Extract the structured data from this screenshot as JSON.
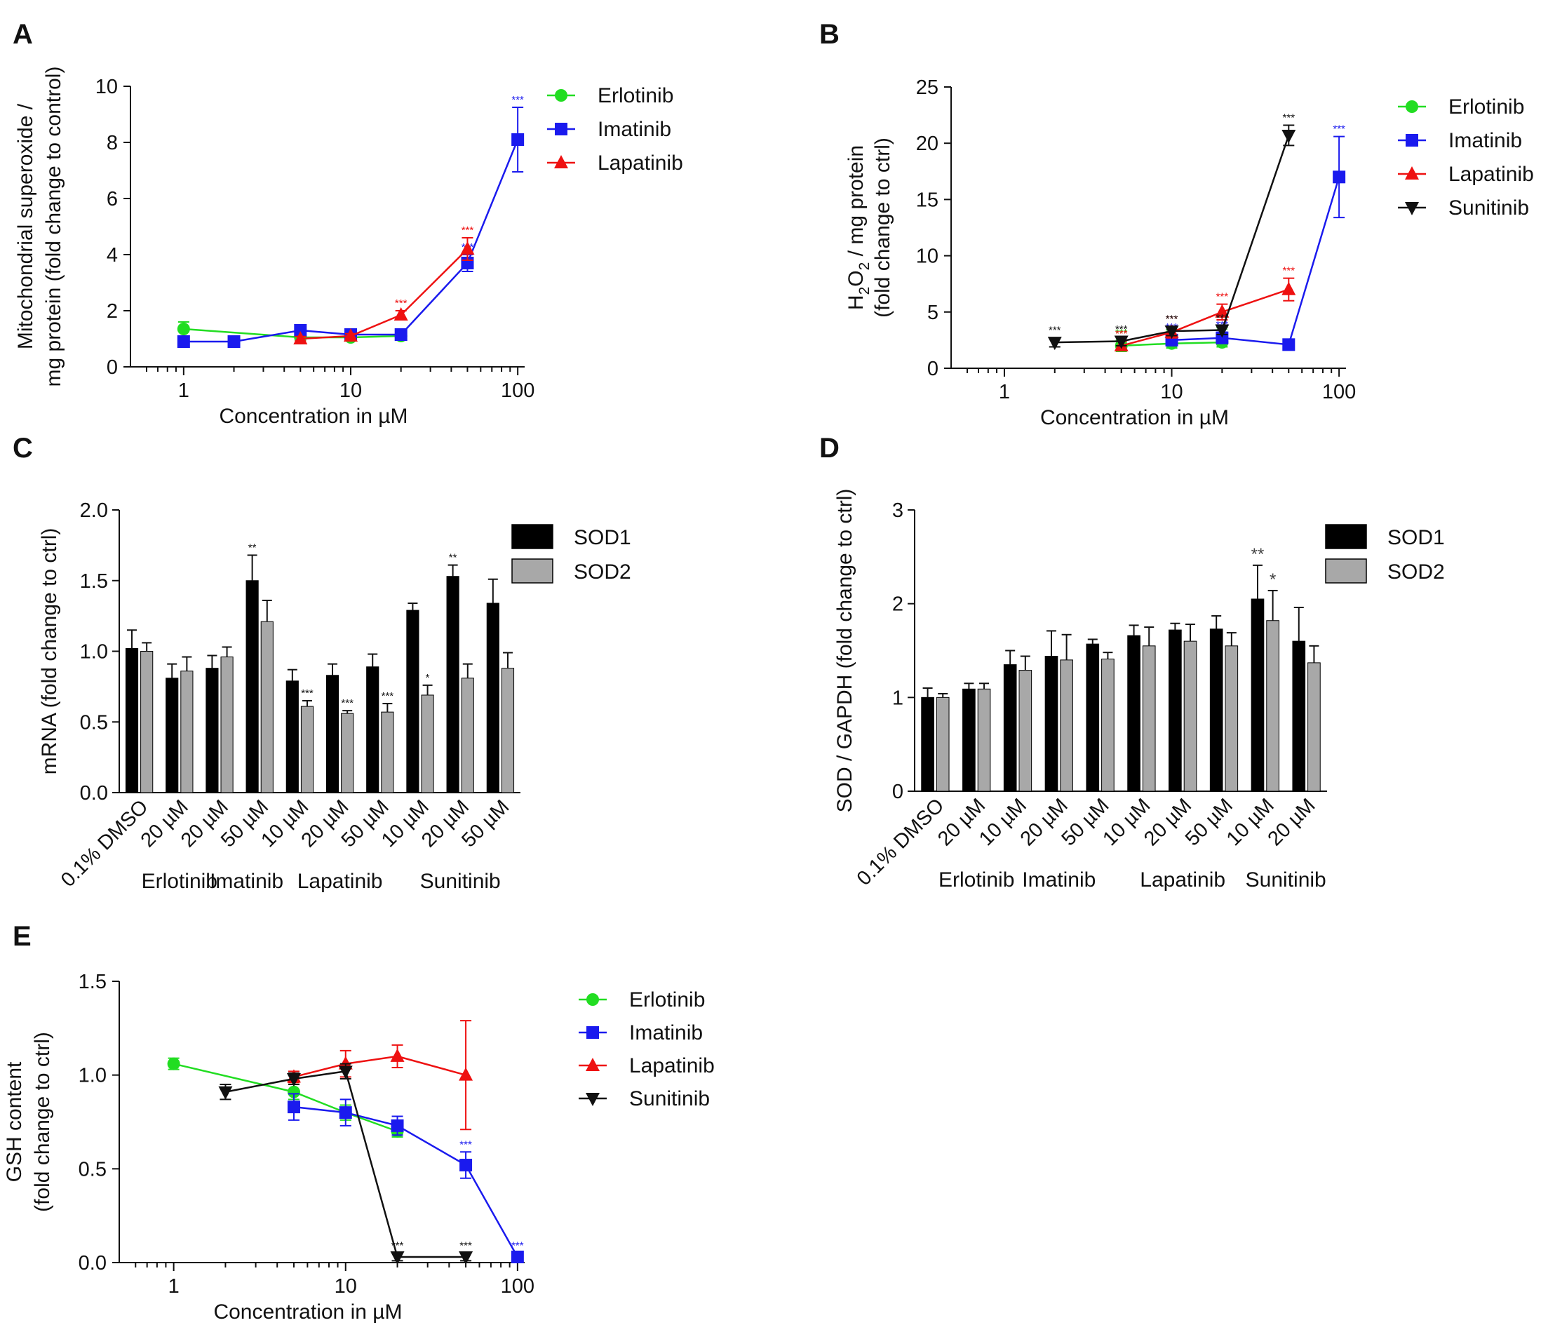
{
  "chart_data": [
    {
      "id": "A",
      "panel_label": "A",
      "type": "line",
      "xscale": "log",
      "xlim": [
        0.55,
        110
      ],
      "ylim": [
        0,
        10
      ],
      "xticks": [
        1,
        10,
        100
      ],
      "xtick_labels": [
        "1",
        "10",
        "100"
      ],
      "yticks": [
        0,
        2,
        4,
        6,
        8,
        10
      ],
      "ytick_labels": [
        "0",
        "2",
        "4",
        "6",
        "8",
        "10"
      ],
      "xlabel": "Concentration in µM",
      "ylabel_lines": [
        "Mitochondrial superoxide /",
        "mg protein (fold change to control)"
      ],
      "legend": [
        "Erlotinib",
        "Imatinib",
        "Lapatinib"
      ],
      "series": [
        {
          "name": "Erlotinib",
          "color": "#22dd22",
          "marker": "circle",
          "points": [
            {
              "x": 1,
              "y": 1.35,
              "err": 0.25
            },
            {
              "x": 5,
              "y": 1.05,
              "err": 0.1
            },
            {
              "x": 10,
              "y": 1.05,
              "err": 0.08
            },
            {
              "x": 20,
              "y": 1.1,
              "err": 0.1
            }
          ]
        },
        {
          "name": "Imatinib",
          "color": "#1a1aee",
          "marker": "square",
          "points": [
            {
              "x": 1,
              "y": 0.9,
              "err": 0.05
            },
            {
              "x": 2,
              "y": 0.9,
              "err": 0.05
            },
            {
              "x": 5,
              "y": 1.3,
              "err": 0.1
            },
            {
              "x": 10,
              "y": 1.15,
              "err": 0.1
            },
            {
              "x": 20,
              "y": 1.15,
              "err": 0.1
            },
            {
              "x": 50,
              "y": 3.7,
              "err": 0.3,
              "sig": "***"
            },
            {
              "x": 100,
              "y": 8.1,
              "err": 1.15,
              "sig": "***"
            }
          ]
        },
        {
          "name": "Lapatinib",
          "color": "#ee1111",
          "marker": "triangle-up",
          "points": [
            {
              "x": 5,
              "y": 1.0,
              "err": 0.08
            },
            {
              "x": 10,
              "y": 1.1,
              "err": 0.08
            },
            {
              "x": 20,
              "y": 1.85,
              "err": 0.15,
              "sig": "***"
            },
            {
              "x": 50,
              "y": 4.2,
              "err": 0.4,
              "sig": "***"
            }
          ]
        }
      ]
    },
    {
      "id": "B",
      "panel_label": "B",
      "type": "line",
      "xscale": "log",
      "xlim": [
        0.55,
        110
      ],
      "ylim": [
        0,
        25
      ],
      "xticks": [
        1,
        10,
        100
      ],
      "xtick_labels": [
        "1",
        "10",
        "100"
      ],
      "yticks": [
        0,
        5,
        10,
        15,
        20,
        25
      ],
      "ytick_labels": [
        "0",
        "5",
        "10",
        "15",
        "20",
        "25"
      ],
      "xlabel": "Concentration in µM",
      "ylabel_h2o2": {
        "H": "H",
        "sub1": "2",
        "O": "O",
        "sub2": "2",
        "rest": " / mg protein"
      },
      "ylabel_line2": "(fold change to ctrl)",
      "legend": [
        "Erlotinib",
        "Imatinib",
        "Lapatinib",
        "Sunitinib"
      ],
      "series": [
        {
          "name": "Erlotinib",
          "color": "#22dd22",
          "marker": "circle",
          "points": [
            {
              "x": 5,
              "y": 2.0,
              "err": 0.5,
              "sig": "***"
            },
            {
              "x": 10,
              "y": 2.2,
              "err": 0.4,
              "sig": "***"
            },
            {
              "x": 20,
              "y": 2.3,
              "err": 0.4,
              "sig": "***"
            }
          ]
        },
        {
          "name": "Imatinib",
          "color": "#1a1aee",
          "marker": "square",
          "points": [
            {
              "x": 10,
              "y": 2.5,
              "err": 0.5,
              "sig": "***"
            },
            {
              "x": 20,
              "y": 2.7,
              "err": 0.5,
              "sig": "***"
            },
            {
              "x": 50,
              "y": 2.1,
              "err": 0.4
            },
            {
              "x": 100,
              "y": 17.0,
              "err": 3.6,
              "sig": "***"
            }
          ]
        },
        {
          "name": "Lapatinib",
          "color": "#ee1111",
          "marker": "triangle-up",
          "points": [
            {
              "x": 5,
              "y": 2.0,
              "err": 0.4,
              "sig": "***"
            },
            {
              "x": 10,
              "y": 3.2,
              "err": 0.5,
              "sig": "***"
            },
            {
              "x": 20,
              "y": 5.0,
              "err": 0.7,
              "sig": "***"
            },
            {
              "x": 50,
              "y": 7.0,
              "err": 1.0,
              "sig": "***"
            }
          ]
        },
        {
          "name": "Sunitinib",
          "color": "#111111",
          "marker": "triangle-down",
          "points": [
            {
              "x": 2,
              "y": 2.3,
              "err": 0.4,
              "sig": "***"
            },
            {
              "x": 5,
              "y": 2.4,
              "err": 0.4,
              "sig": "***"
            },
            {
              "x": 10,
              "y": 3.3,
              "err": 0.4,
              "sig": "***"
            },
            {
              "x": 20,
              "y": 3.4,
              "err": 0.4,
              "sig": "***"
            },
            {
              "x": 50,
              "y": 20.7,
              "err": 0.9,
              "sig": "***"
            }
          ]
        }
      ]
    },
    {
      "id": "C",
      "panel_label": "C",
      "type": "bar",
      "ylim": [
        0,
        2.0
      ],
      "yticks": [
        0,
        0.5,
        1.0,
        1.5,
        2.0
      ],
      "ytick_labels": [
        "0.0",
        "0.5",
        "1.0",
        "1.5",
        "2.0"
      ],
      "ylabel": "mRNA (fold change to ctrl)",
      "legend": [
        "SOD1",
        "SOD2"
      ],
      "series_colors": [
        "#000000",
        "#a8a8a8"
      ],
      "categories": [
        "0.1% DMSO",
        "20 µM",
        "20 µM",
        "50 µM",
        "10 µM",
        "20 µM",
        "50 µM",
        "10 µM",
        "20 µM",
        "50 µM"
      ],
      "groups": [
        {
          "label": "Erlotinib",
          "from": 1,
          "to": 1
        },
        {
          "label": "Imatinib",
          "from": 2,
          "to": 3
        },
        {
          "label": "Lapatinib",
          "from": 4,
          "to": 6
        },
        {
          "label": "Sunitinib",
          "from": 7,
          "to": 9
        }
      ],
      "series": [
        {
          "name": "SOD1",
          "values": [
            1.02,
            0.81,
            0.88,
            1.5,
            0.79,
            0.83,
            0.89,
            1.29,
            1.53,
            1.34
          ],
          "errors": [
            0.13,
            0.1,
            0.09,
            0.18,
            0.08,
            0.08,
            0.09,
            0.05,
            0.08,
            0.17
          ],
          "sig": [
            "",
            "",
            "",
            "**",
            "",
            "",
            "",
            "",
            "**",
            ""
          ]
        },
        {
          "name": "SOD2",
          "values": [
            1.0,
            0.86,
            0.96,
            1.21,
            0.61,
            0.56,
            0.57,
            0.69,
            0.81,
            0.88
          ],
          "errors": [
            0.06,
            0.1,
            0.07,
            0.15,
            0.04,
            0.02,
            0.06,
            0.07,
            0.1,
            0.11
          ],
          "sig": [
            "",
            "",
            "",
            "",
            "***",
            "***",
            "***",
            "*",
            "",
            ""
          ]
        }
      ]
    },
    {
      "id": "D",
      "panel_label": "D",
      "type": "bar",
      "ylim": [
        0,
        3
      ],
      "yticks": [
        0,
        1,
        2,
        3
      ],
      "ytick_labels": [
        "0",
        "1",
        "2",
        "3"
      ],
      "ylabel": "SOD / GAPDH (fold change to ctrl)",
      "legend": [
        "SOD1",
        "SOD2"
      ],
      "series_colors": [
        "#000000",
        "#a8a8a8"
      ],
      "categories": [
        "0.1% DMSO",
        "20 µM",
        "10 µM",
        "20 µM",
        "50 µM",
        "10 µM",
        "20 µM",
        "50 µM",
        "10 µM",
        "20 µM"
      ],
      "groups": [
        {
          "label": "Erlotinib",
          "from": 1,
          "to": 1
        },
        {
          "label": "Imatinib",
          "from": 2,
          "to": 4
        },
        {
          "label": "Lapatinib",
          "from": 5,
          "to": 7
        },
        {
          "label": "Sunitinib",
          "from": 8,
          "to": 9
        }
      ],
      "series": [
        {
          "name": "SOD1",
          "values": [
            1.0,
            1.09,
            1.35,
            1.44,
            1.57,
            1.66,
            1.72,
            1.73,
            2.05,
            1.6
          ],
          "errors": [
            0.1,
            0.06,
            0.15,
            0.27,
            0.05,
            0.11,
            0.07,
            0.14,
            0.36,
            0.36
          ],
          "sig": [
            "",
            "",
            "",
            "",
            "",
            "",
            "",
            "",
            "**",
            ""
          ]
        },
        {
          "name": "SOD2",
          "values": [
            1.0,
            1.09,
            1.29,
            1.4,
            1.41,
            1.55,
            1.6,
            1.55,
            1.82,
            1.37
          ],
          "errors": [
            0.04,
            0.06,
            0.15,
            0.27,
            0.07,
            0.2,
            0.18,
            0.14,
            0.32,
            0.18
          ],
          "sig": [
            "",
            "",
            "",
            "",
            "",
            "",
            "",
            "",
            "*",
            ""
          ]
        }
      ]
    },
    {
      "id": "E",
      "panel_label": "E",
      "type": "line",
      "xscale": "log",
      "xlim": [
        0.55,
        110
      ],
      "ylim": [
        0,
        1.5
      ],
      "xticks": [
        1,
        10,
        100
      ],
      "xtick_labels": [
        "1",
        "10",
        "100"
      ],
      "yticks": [
        0,
        0.5,
        1.0,
        1.5
      ],
      "ytick_labels": [
        "0.0",
        "0.5",
        "1.0",
        "1.5"
      ],
      "xlabel": "Concentration in µM",
      "ylabel_lines": [
        "GSH content",
        "(fold change to ctrl)"
      ],
      "legend": [
        "Erlotinib",
        "Imatinib",
        "Lapatinib",
        "Sunitinib"
      ],
      "series": [
        {
          "name": "Erlotinib",
          "color": "#22dd22",
          "marker": "circle",
          "points": [
            {
              "x": 1,
              "y": 1.06,
              "err": 0.03
            },
            {
              "x": 5,
              "y": 0.91,
              "err": 0.04
            },
            {
              "x": 10,
              "y": 0.8,
              "err": 0.04
            },
            {
              "x": 20,
              "y": 0.7,
              "err": 0.03
            }
          ]
        },
        {
          "name": "Imatinib",
          "color": "#1a1aee",
          "marker": "square",
          "points": [
            {
              "x": 5,
              "y": 0.83,
              "err": 0.07
            },
            {
              "x": 10,
              "y": 0.8,
              "err": 0.07
            },
            {
              "x": 20,
              "y": 0.73,
              "err": 0.05
            },
            {
              "x": 50,
              "y": 0.52,
              "err": 0.07,
              "sig": "***"
            },
            {
              "x": 100,
              "y": 0.03,
              "err": 0.02,
              "sig": "***"
            }
          ]
        },
        {
          "name": "Lapatinib",
          "color": "#ee1111",
          "marker": "triangle-up",
          "points": [
            {
              "x": 5,
              "y": 0.99,
              "err": 0.03
            },
            {
              "x": 10,
              "y": 1.06,
              "err": 0.07
            },
            {
              "x": 20,
              "y": 1.1,
              "err": 0.06
            },
            {
              "x": 50,
              "y": 1.0,
              "err": 0.29
            }
          ]
        },
        {
          "name": "Sunitinib",
          "color": "#111111",
          "marker": "triangle-down",
          "points": [
            {
              "x": 2,
              "y": 0.91,
              "err": 0.04
            },
            {
              "x": 5,
              "y": 0.98,
              "err": 0.03
            },
            {
              "x": 10,
              "y": 1.02,
              "err": 0.04
            },
            {
              "x": 20,
              "y": 0.03,
              "err": 0.02,
              "sig": "***"
            },
            {
              "x": 50,
              "y": 0.03,
              "err": 0.02,
              "sig": "***"
            }
          ]
        }
      ]
    }
  ]
}
